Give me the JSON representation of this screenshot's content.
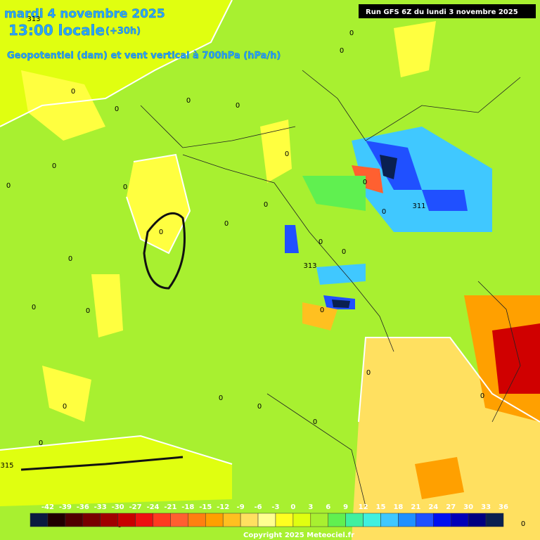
{
  "header": {
    "date": "mardi 4 novembre 2025",
    "time": "13:00 locale",
    "lead": "(+30h)",
    "subtitle": "Geopotentiel (dam) et vent vertical à 700hPa (hPa/h)",
    "run": "Run GFS 6Z du lundi 3 novembre 2025"
  },
  "legend": {
    "ticks": [
      -42,
      -39,
      -36,
      -33,
      -30,
      -27,
      -24,
      -21,
      -18,
      -15,
      -12,
      -9,
      -6,
      -3,
      0,
      3,
      6,
      9,
      12,
      15,
      18,
      21,
      24,
      27,
      30,
      33,
      36
    ],
    "colors": [
      "#0a1a40",
      "#200000",
      "#500000",
      "#780000",
      "#a00000",
      "#c80000",
      "#ee1010",
      "#ff3a20",
      "#ff6030",
      "#ff8010",
      "#ffa000",
      "#ffc020",
      "#ffe060",
      "#ffff90",
      "#ffff20",
      "#e0ff10",
      "#a8f030",
      "#60f050",
      "#40f0a0",
      "#40f0e0",
      "#40c8ff",
      "#2090ff",
      "#2050ff",
      "#0010f0",
      "#0000b8",
      "#000080",
      "#0a2050"
    ]
  },
  "contour_labels": [
    "0",
    "0",
    "0",
    "0",
    "0",
    "0",
    "0",
    "0",
    "0",
    "0",
    "0",
    "0",
    "0",
    "0",
    "0",
    "0",
    "0",
    "0",
    "0",
    "0",
    "0",
    "0",
    "0",
    "0",
    "0",
    "0",
    "0",
    "0",
    "0",
    "0",
    "313",
    "311",
    "315",
    "313"
  ],
  "copyright": "Copyright 2025 Meteociel.fr"
}
